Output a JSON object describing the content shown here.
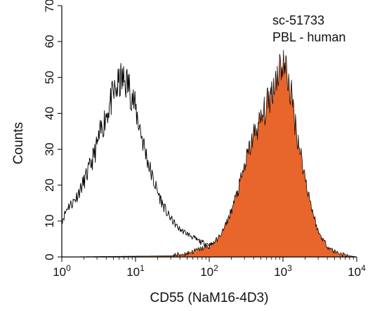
{
  "chart_data": {
    "type": "area",
    "ylabel": "Counts",
    "xlabel": "CD55 (NaM16-4D3)",
    "annotations": [
      "sc-51733",
      "PBL - human"
    ],
    "xscale": "log",
    "xlim": [
      1,
      10000
    ],
    "ylim": [
      0,
      70
    ],
    "grid": false,
    "y_ticks": [
      0,
      10,
      20,
      30,
      40,
      50,
      60,
      70
    ],
    "y_tick_labels": [
      "0",
      "10",
      "20",
      "30",
      "40",
      "50",
      "60",
      "70"
    ],
    "x_ticks": [
      {
        "base": "10",
        "exp": "0"
      },
      {
        "base": "10",
        "exp": "1"
      },
      {
        "base": "10",
        "exp": "2"
      },
      {
        "base": "10",
        "exp": "3"
      },
      {
        "base": "10",
        "exp": "4"
      }
    ],
    "series": [
      {
        "style": "outline",
        "color": "#000000",
        "x": [
          1.0,
          1.1,
          1.2,
          1.4,
          1.6,
          1.8,
          2.0,
          2.3,
          2.6,
          3.0,
          3.4,
          3.9,
          4.4,
          5.0,
          5.6,
          6.3,
          7.1,
          8.0,
          9.0,
          10,
          11.5,
          13,
          15,
          17,
          20,
          23,
          27,
          32,
          38,
          45,
          55,
          65,
          80,
          100,
          130,
          170,
          220,
          300,
          400,
          550,
          750,
          1000,
          1400,
          2000,
          3000,
          5000,
          10000
        ],
        "y": [
          10,
          12,
          14,
          15,
          17,
          19,
          21,
          24,
          27,
          31,
          35,
          39,
          42,
          45,
          47,
          49,
          49,
          48,
          45,
          41,
          36,
          31,
          26,
          22,
          18,
          15,
          12,
          10,
          8,
          7,
          6,
          5,
          4,
          3.5,
          3,
          2.6,
          2.3,
          2,
          2,
          2.3,
          2.8,
          2.5,
          1.8,
          1.2,
          0.8,
          0.4,
          0
        ]
      },
      {
        "style": "filled",
        "color": "#e8652b",
        "x": [
          1,
          30,
          50,
          70,
          100,
          130,
          160,
          200,
          250,
          300,
          350,
          400,
          500,
          600,
          700,
          800,
          900,
          1000,
          1100,
          1300,
          1500,
          2000,
          2500,
          3000,
          4000,
          5000,
          7000,
          10000
        ],
        "y": [
          0,
          0.3,
          1,
          2,
          3,
          5,
          8,
          13,
          19,
          25,
          30,
          34,
          38,
          42,
          46,
          50,
          53,
          54,
          52,
          45,
          36,
          22,
          13,
          7,
          3,
          1.5,
          0.5,
          0
        ]
      }
    ]
  }
}
